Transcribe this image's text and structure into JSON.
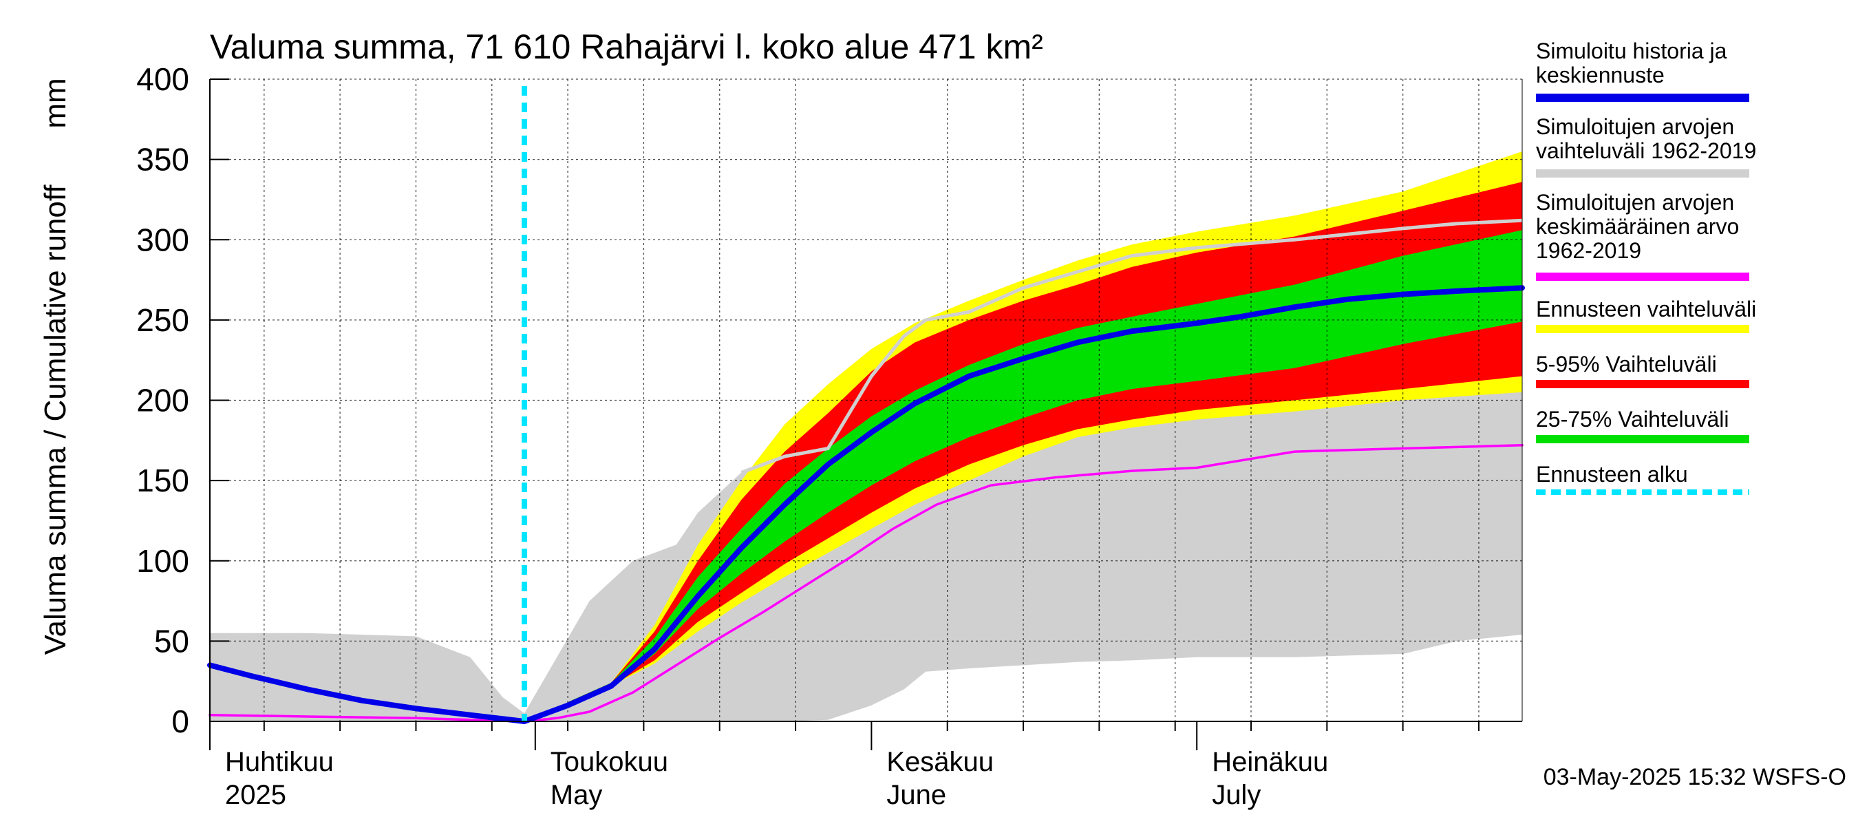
{
  "chart_data": {
    "type": "area",
    "title": "Valuma summa, 71 610 Rahajärvi l. koko alue 471 km²",
    "ylabel": "Valuma summa / Cumulative runoff",
    "yunit": "mm",
    "ylim": [
      0,
      400
    ],
    "yticks": [
      0,
      50,
      100,
      150,
      200,
      250,
      300,
      350,
      400
    ],
    "xlim": [
      "2025-04-01",
      "2025-07-31"
    ],
    "month_labels": [
      {
        "date": "2025-04-01",
        "fi": "Huhtikuu",
        "en": "2025"
      },
      {
        "date": "2025-05-01",
        "fi": "Toukokuu",
        "en": "May"
      },
      {
        "date": "2025-06-01",
        "fi": "Kesäkuu",
        "en": "June"
      },
      {
        "date": "2025-07-01",
        "fi": "Heinäkuu",
        "en": "July"
      }
    ],
    "grid": true,
    "forecast_start": "2025-04-30",
    "timestamp": "03-May-2025 15:32 WSFS-O",
    "legend": [
      {
        "label": "Simuloitu historia ja keskiennuste",
        "color": "#0000e8",
        "style": "solid"
      },
      {
        "label": "Simuloitujen arvojen vaihteluväli 1962-2019",
        "color": "#d0d0d0",
        "style": "solid"
      },
      {
        "label": "Simuloitujen arvojen keskimääräinen arvo 1962-2019",
        "color": "#ff00ff",
        "style": "solid"
      },
      {
        "label": "Ennusteen vaihteluväli",
        "color": "#ffff00",
        "style": "solid"
      },
      {
        "label": "5-95% Vaihteluväli",
        "color": "#ff0000",
        "style": "solid"
      },
      {
        "label": "25-75% Vaihteluväli",
        "color": "#00e000",
        "style": "solid"
      },
      {
        "label": "Ennusteen alku",
        "color": "#00e5ff",
        "style": "dashed"
      }
    ],
    "series": [
      {
        "name": "Simuloitujen arvojen vaihteluväli 1962-2019",
        "kind": "band",
        "x": [
          "2025-04-01",
          "2025-04-10",
          "2025-04-20",
          "2025-04-25",
          "2025-04-28",
          "2025-04-30",
          "2025-05-03",
          "2025-05-06",
          "2025-05-10",
          "2025-05-14",
          "2025-05-16",
          "2025-05-20",
          "2025-05-24",
          "2025-05-28",
          "2025-06-01",
          "2025-06-04",
          "2025-06-06",
          "2025-06-10",
          "2025-06-15",
          "2025-06-20",
          "2025-06-25",
          "2025-07-01",
          "2025-07-10",
          "2025-07-20",
          "2025-07-25",
          "2025-07-31"
        ],
        "lower": [
          0,
          0,
          0,
          0,
          0,
          0,
          0,
          0,
          0,
          0,
          0,
          0,
          0,
          1,
          10,
          20,
          31,
          33,
          35,
          37,
          38,
          40,
          40,
          42,
          50,
          54
        ],
        "upper": [
          55,
          55,
          53,
          40,
          15,
          5,
          40,
          75,
          100,
          110,
          130,
          155,
          165,
          170,
          215,
          240,
          250,
          255,
          270,
          280,
          290,
          295,
          300,
          307,
          310,
          312
        ]
      },
      {
        "name": "Ennusteen vaihteluväli",
        "kind": "band",
        "x": [
          "2025-05-04",
          "2025-05-08",
          "2025-05-12",
          "2025-05-16",
          "2025-05-20",
          "2025-05-24",
          "2025-05-28",
          "2025-06-01",
          "2025-06-05",
          "2025-06-10",
          "2025-06-15",
          "2025-06-20",
          "2025-06-25",
          "2025-07-01",
          "2025-07-10",
          "2025-07-20",
          "2025-07-31"
        ],
        "lower": [
          12,
          22,
          36,
          56,
          74,
          90,
          105,
          120,
          135,
          150,
          165,
          177,
          183,
          188,
          193,
          200,
          205
        ],
        "upper": [
          12,
          24,
          60,
          110,
          150,
          185,
          210,
          232,
          248,
          262,
          275,
          287,
          297,
          305,
          315,
          330,
          355
        ]
      },
      {
        "name": "5-95% Vaihteluväli",
        "kind": "band",
        "x": [
          "2025-05-04",
          "2025-05-08",
          "2025-05-12",
          "2025-05-16",
          "2025-05-20",
          "2025-05-24",
          "2025-05-28",
          "2025-06-01",
          "2025-06-05",
          "2025-06-10",
          "2025-06-15",
          "2025-06-20",
          "2025-06-25",
          "2025-07-01",
          "2025-07-10",
          "2025-07-20",
          "2025-07-31"
        ],
        "lower": [
          12,
          22,
          38,
          62,
          80,
          98,
          114,
          130,
          145,
          160,
          172,
          182,
          188,
          194,
          200,
          207,
          215
        ],
        "upper": [
          12,
          24,
          56,
          100,
          138,
          168,
          192,
          218,
          236,
          250,
          262,
          272,
          283,
          292,
          302,
          318,
          336
        ]
      },
      {
        "name": "25-75% Vaihteluväli",
        "kind": "band",
        "x": [
          "2025-05-04",
          "2025-05-08",
          "2025-05-12",
          "2025-05-16",
          "2025-05-20",
          "2025-05-24",
          "2025-05-28",
          "2025-06-01",
          "2025-06-05",
          "2025-06-10",
          "2025-06-15",
          "2025-06-20",
          "2025-06-25",
          "2025-07-01",
          "2025-07-10",
          "2025-07-20",
          "2025-07-31"
        ],
        "lower": [
          12,
          22,
          42,
          70,
          92,
          112,
          130,
          147,
          162,
          177,
          189,
          200,
          207,
          212,
          220,
          235,
          249
        ],
        "upper": [
          12,
          24,
          52,
          90,
          120,
          148,
          170,
          190,
          206,
          222,
          235,
          245,
          252,
          260,
          272,
          290,
          306
        ]
      },
      {
        "name": "Simuloitujen arvojen keskimääräinen arvo 1962-2019",
        "kind": "line",
        "x": [
          "2025-04-01",
          "2025-04-10",
          "2025-04-20",
          "2025-04-30",
          "2025-05-03",
          "2025-05-06",
          "2025-05-10",
          "2025-05-14",
          "2025-05-18",
          "2025-05-22",
          "2025-05-26",
          "2025-05-30",
          "2025-06-03",
          "2025-06-07",
          "2025-06-12",
          "2025-06-18",
          "2025-06-25",
          "2025-07-01",
          "2025-07-10",
          "2025-07-20",
          "2025-07-31"
        ],
        "values": [
          4,
          3,
          2,
          0,
          2,
          6,
          18,
          35,
          52,
          68,
          85,
          102,
          120,
          135,
          147,
          152,
          156,
          158,
          168,
          170,
          172
        ]
      },
      {
        "name": "Simuloitu historia ja keskiennuste",
        "kind": "line",
        "x": [
          "2025-04-01",
          "2025-04-05",
          "2025-04-10",
          "2025-04-15",
          "2025-04-20",
          "2025-04-25",
          "2025-04-30",
          "2025-05-04",
          "2025-05-08",
          "2025-05-12",
          "2025-05-16",
          "2025-05-20",
          "2025-05-24",
          "2025-05-28",
          "2025-06-01",
          "2025-06-05",
          "2025-06-10",
          "2025-06-15",
          "2025-06-20",
          "2025-06-25",
          "2025-07-01",
          "2025-07-05",
          "2025-07-10",
          "2025-07-15",
          "2025-07-20",
          "2025-07-25",
          "2025-07-31"
        ],
        "values": [
          35,
          28,
          20,
          13,
          8,
          4,
          0,
          10,
          22,
          45,
          78,
          108,
          135,
          160,
          180,
          198,
          215,
          226,
          236,
          243,
          248,
          252,
          258,
          263,
          266,
          268,
          270
        ]
      }
    ]
  }
}
